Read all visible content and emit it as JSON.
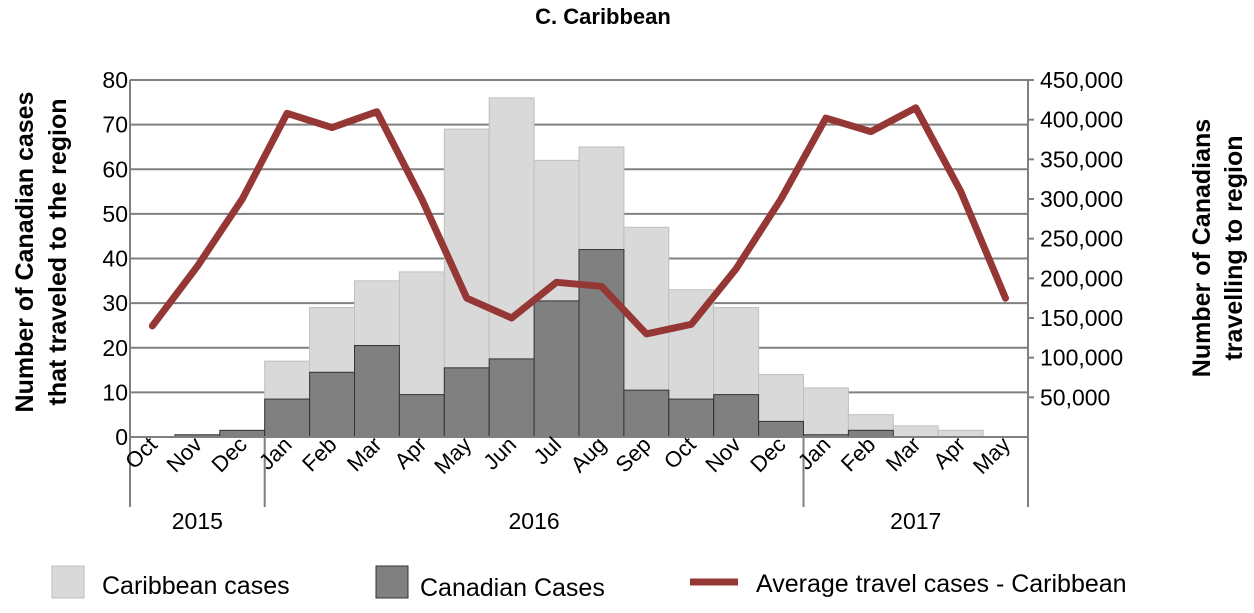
{
  "chart_data": {
    "type": "bar",
    "title": "C. Caribbean",
    "categories": [
      "Oct",
      "Nov",
      "Dec",
      "Jan",
      "Feb",
      "Mar",
      "Apr",
      "May",
      "Jun",
      "Jul",
      "Aug",
      "Sep",
      "Oct",
      "Nov",
      "Dec",
      "Jan",
      "Feb",
      "Mar",
      "Apr",
      "May"
    ],
    "year_groups": [
      {
        "label": "2015",
        "start": 0,
        "end": 2
      },
      {
        "label": "2016",
        "start": 3,
        "end": 14
      },
      {
        "label": "2017",
        "start": 15,
        "end": 19
      }
    ],
    "ylabel_left_line1": "Number of Canadian cases",
    "ylabel_left_line2": "that traveled to the region",
    "ylabel_right_line1": "Number of Canadians",
    "ylabel_right_line2": "travelling to region",
    "ylim_left": [
      0,
      80
    ],
    "yticks_left": [
      "0",
      "10",
      "20",
      "30",
      "40",
      "50",
      "60",
      "70",
      "80"
    ],
    "ylim_right": [
      0,
      450000
    ],
    "yticks_right": [
      "50,000",
      "100,000",
      "150,000",
      "200,000",
      "250,000",
      "300,000",
      "350,000",
      "400,000",
      "450,000"
    ],
    "series": [
      {
        "name": "Caribbean cases",
        "kind": "bar",
        "axis": "left",
        "color": "#d9d9d9",
        "values": [
          0,
          0,
          0,
          17,
          29,
          35,
          37,
          69,
          76,
          62,
          65,
          47,
          33,
          29,
          14,
          11,
          5,
          2.5,
          1.5,
          0
        ]
      },
      {
        "name": "Canadian Cases",
        "kind": "bar",
        "axis": "left",
        "color": "#808080",
        "values": [
          0,
          0.5,
          1.5,
          8.5,
          14.5,
          20.5,
          9.5,
          15.5,
          17.5,
          30.5,
          42,
          10.5,
          8.5,
          9.5,
          3.5,
          0.5,
          1.5,
          0,
          0,
          0
        ]
      },
      {
        "name": "Average travel cases - Caribbean",
        "kind": "line",
        "axis": "right",
        "color": "#953735",
        "values": [
          140000,
          215000,
          300000,
          408000,
          390000,
          410000,
          300000,
          175000,
          150000,
          195000,
          190000,
          130000,
          142000,
          212000,
          300000,
          402000,
          385000,
          415000,
          310000,
          175000
        ]
      }
    ],
    "legend": [
      "Caribbean cases",
      "Canadian Cases",
      "Average travel cases - Caribbean"
    ],
    "legend_position": "bottom",
    "grid": true
  }
}
